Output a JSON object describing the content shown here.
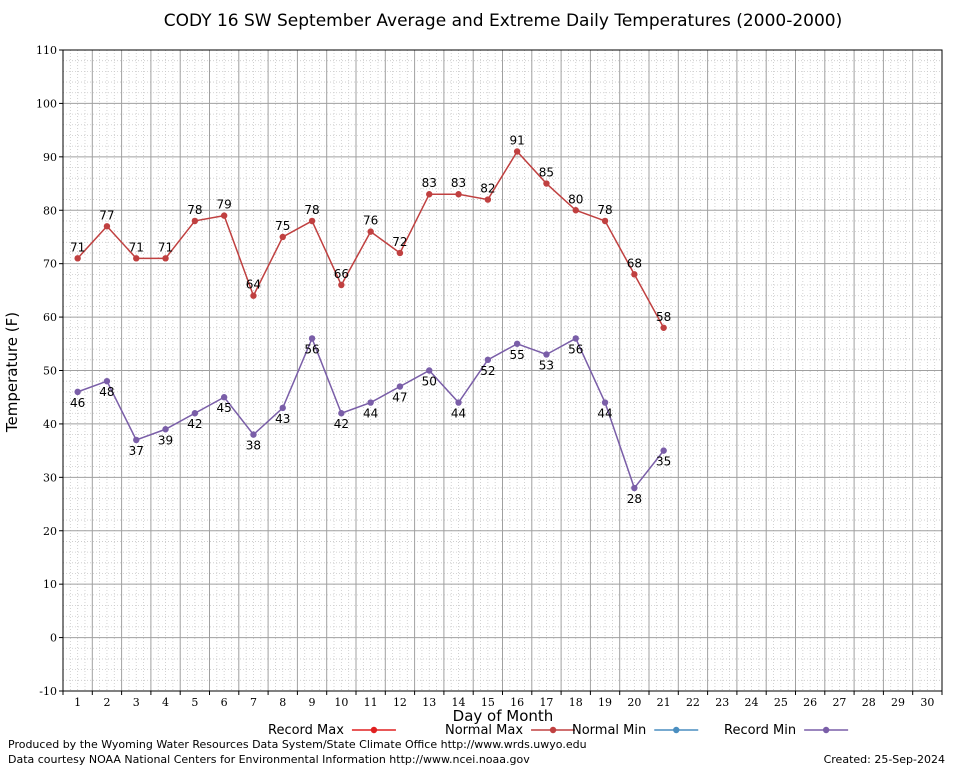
{
  "chart_data": {
    "type": "line",
    "title": "CODY 16 SW September Average and Extreme Daily Temperatures (2000-2000)",
    "xlabel": "Day of Month",
    "ylabel": "Temperature (F)",
    "x": [
      1,
      2,
      3,
      4,
      5,
      6,
      7,
      8,
      9,
      10,
      11,
      12,
      13,
      14,
      15,
      16,
      17,
      18,
      19,
      20,
      21
    ],
    "xlim": [
      1,
      30
    ],
    "ylim": [
      -10,
      110
    ],
    "ytick_step": 10,
    "grid": true,
    "legend_position": "bottom",
    "legend": [
      "Record Max",
      "Normal Max",
      "Normal Min",
      "Record Min"
    ],
    "legend_colors": [
      "#e02020",
      "#c04040",
      "#4a8ec0",
      "#7a5ea8"
    ],
    "series": [
      {
        "name": "Normal Max",
        "color": "#c04040",
        "labels_above": true,
        "values": [
          71,
          77,
          71,
          71,
          78,
          79,
          64,
          75,
          78,
          66,
          76,
          72,
          83,
          83,
          82,
          91,
          85,
          80,
          78,
          68,
          58
        ]
      },
      {
        "name": "Record Min",
        "color": "#7a5ea8",
        "labels_above": false,
        "values": [
          46,
          48,
          37,
          39,
          42,
          45,
          38,
          43,
          56,
          42,
          44,
          47,
          50,
          44,
          52,
          55,
          53,
          56,
          44,
          28,
          35
        ]
      }
    ]
  },
  "footer": {
    "produced_by": "Produced by the Wyoming Water Resources Data System/State Climate Office http://www.wrds.uwyo.edu",
    "courtesy": "Data courtesy NOAA National Centers for Environmental Information http://www.ncei.noaa.gov",
    "created": "Created: 25-Sep-2024"
  }
}
